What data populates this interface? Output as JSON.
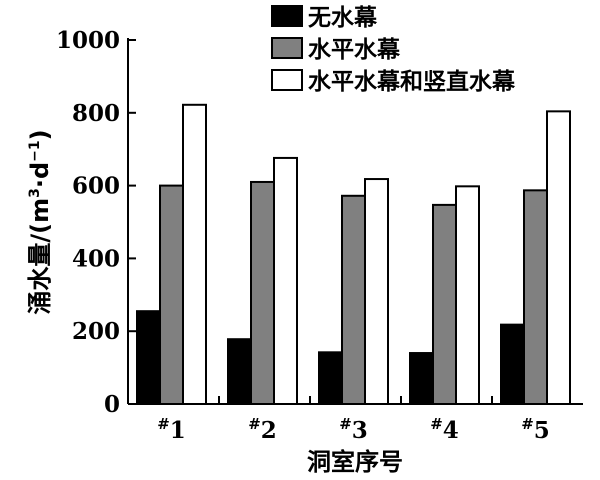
{
  "chart_data": {
    "type": "bar",
    "categories": [
      "#1",
      "#2",
      "#3",
      "#4",
      "#5"
    ],
    "category_labels": [
      {
        "sup": "#",
        "num": "1"
      },
      {
        "sup": "#",
        "num": "2"
      },
      {
        "sup": "#",
        "num": "3"
      },
      {
        "sup": "#",
        "num": "4"
      },
      {
        "sup": "#",
        "num": "5"
      }
    ],
    "series": [
      {
        "name": "无水幕",
        "color": "#000000",
        "values": [
          255,
          178,
          142,
          140,
          218
        ]
      },
      {
        "name": "水平水幕",
        "color": "#808080",
        "values": [
          600,
          610,
          572,
          547,
          587
        ]
      },
      {
        "name": "水平水幕和竖直水幕",
        "color": "#ffffff",
        "values": [
          822,
          676,
          618,
          598,
          804
        ]
      }
    ],
    "xlabel": "洞室序号",
    "ylabel": "涌水量/(m³·d⁻¹)",
    "ylabel_parts": {
      "main": "涌水量/(m",
      "sup1": "3",
      "mid": "·d",
      "sup2": "−1",
      "end": ")"
    },
    "ylim": [
      0,
      1000
    ],
    "yticks": [
      0,
      200,
      400,
      600,
      800,
      1000
    ],
    "grid": false,
    "legend_position": "top-right"
  }
}
